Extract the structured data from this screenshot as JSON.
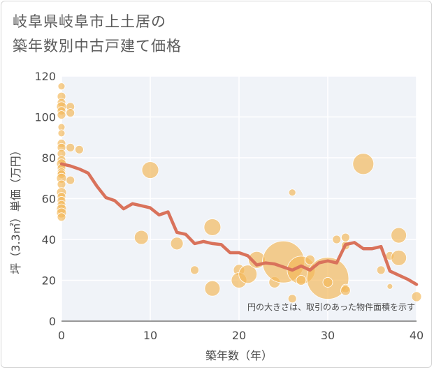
{
  "chart_data": {
    "type": "scatter",
    "title_lines": [
      "岐阜県岐阜市上土居の",
      "築年数別中古戸建て価格"
    ],
    "xlabel": "築年数（年）",
    "ylabel": "坪（3.3㎡）単価（万円）",
    "xlim": [
      0,
      40
    ],
    "ylim": [
      0,
      120
    ],
    "xticks": [
      0,
      10,
      20,
      30,
      40
    ],
    "yticks": [
      0,
      20,
      40,
      60,
      80,
      100,
      120
    ],
    "grid": true,
    "note": "円の大きさは、取引のあった物件面積を示す",
    "bubble_color": "#f3b85a",
    "line_color": "#d9725b",
    "points": [
      {
        "x": 0,
        "y": 115,
        "s": 5
      },
      {
        "x": 0,
        "y": 110,
        "s": 6
      },
      {
        "x": 0,
        "y": 107,
        "s": 6
      },
      {
        "x": 0,
        "y": 105,
        "s": 7
      },
      {
        "x": 0,
        "y": 103,
        "s": 6
      },
      {
        "x": 0,
        "y": 101,
        "s": 6
      },
      {
        "x": 0,
        "y": 95,
        "s": 5
      },
      {
        "x": 0,
        "y": 92,
        "s": 5
      },
      {
        "x": 0,
        "y": 87,
        "s": 6
      },
      {
        "x": 0,
        "y": 85,
        "s": 6
      },
      {
        "x": 0,
        "y": 82,
        "s": 6
      },
      {
        "x": 0,
        "y": 79,
        "s": 6
      },
      {
        "x": 0,
        "y": 77,
        "s": 7
      },
      {
        "x": 0,
        "y": 75,
        "s": 6
      },
      {
        "x": 0,
        "y": 73,
        "s": 6
      },
      {
        "x": 0,
        "y": 72,
        "s": 6
      },
      {
        "x": 0,
        "y": 70,
        "s": 7
      },
      {
        "x": 0,
        "y": 67,
        "s": 6
      },
      {
        "x": 0,
        "y": 63,
        "s": 7
      },
      {
        "x": 0,
        "y": 61,
        "s": 6
      },
      {
        "x": 0,
        "y": 59,
        "s": 6
      },
      {
        "x": 0,
        "y": 57,
        "s": 6
      },
      {
        "x": 0,
        "y": 55,
        "s": 7
      },
      {
        "x": 0,
        "y": 53,
        "s": 7
      },
      {
        "x": 0,
        "y": 51,
        "s": 6
      },
      {
        "x": 1,
        "y": 105,
        "s": 6
      },
      {
        "x": 1,
        "y": 102,
        "s": 6
      },
      {
        "x": 1,
        "y": 85,
        "s": 6
      },
      {
        "x": 1,
        "y": 69,
        "s": 6
      },
      {
        "x": 2,
        "y": 84,
        "s": 6
      },
      {
        "x": 10,
        "y": 74,
        "s": 12
      },
      {
        "x": 9,
        "y": 41,
        "s": 10
      },
      {
        "x": 13,
        "y": 38,
        "s": 9
      },
      {
        "x": 15,
        "y": 25,
        "s": 6
      },
      {
        "x": 17,
        "y": 46,
        "s": 12
      },
      {
        "x": 17,
        "y": 16,
        "s": 11
      },
      {
        "x": 20,
        "y": 25,
        "s": 8
      },
      {
        "x": 20,
        "y": 20,
        "s": 11
      },
      {
        "x": 21,
        "y": 23,
        "s": 13
      },
      {
        "x": 22,
        "y": 30,
        "s": 12
      },
      {
        "x": 24,
        "y": 19,
        "s": 8
      },
      {
        "x": 25,
        "y": 29,
        "s": 30
      },
      {
        "x": 26,
        "y": 63,
        "s": 5
      },
      {
        "x": 26,
        "y": 11,
        "s": 6
      },
      {
        "x": 27,
        "y": 25,
        "s": 20
      },
      {
        "x": 27,
        "y": 20,
        "s": 7
      },
      {
        "x": 28,
        "y": 30,
        "s": 7
      },
      {
        "x": 30,
        "y": 21,
        "s": 30
      },
      {
        "x": 30,
        "y": 19,
        "s": 7
      },
      {
        "x": 31,
        "y": 40,
        "s": 6
      },
      {
        "x": 32,
        "y": 41,
        "s": 6
      },
      {
        "x": 32,
        "y": 37,
        "s": 6
      },
      {
        "x": 32,
        "y": 16,
        "s": 6
      },
      {
        "x": 32,
        "y": 15,
        "s": 7
      },
      {
        "x": 34,
        "y": 77,
        "s": 15
      },
      {
        "x": 36,
        "y": 25,
        "s": 6
      },
      {
        "x": 37,
        "y": 32,
        "s": 6
      },
      {
        "x": 37,
        "y": 17,
        "s": 4
      },
      {
        "x": 38,
        "y": 42,
        "s": 11
      },
      {
        "x": 38,
        "y": 31,
        "s": 11
      },
      {
        "x": 40,
        "y": 12,
        "s": 7
      }
    ],
    "trend": [
      [
        0,
        77
      ],
      [
        1,
        76
      ],
      [
        2,
        74.5
      ],
      [
        3,
        72.5
      ],
      [
        4,
        66
      ],
      [
        5,
        60.5
      ],
      [
        6,
        59
      ],
      [
        7,
        55
      ],
      [
        8,
        57.5
      ],
      [
        9,
        56.5
      ],
      [
        10,
        55.5
      ],
      [
        11,
        52
      ],
      [
        12,
        53.5
      ],
      [
        13,
        43.5
      ],
      [
        14,
        42.5
      ],
      [
        15,
        38
      ],
      [
        16,
        39
      ],
      [
        17,
        38
      ],
      [
        18,
        37.5
      ],
      [
        19,
        33.5
      ],
      [
        20,
        33.5
      ],
      [
        21,
        32
      ],
      [
        22,
        27.5
      ],
      [
        23,
        28.5
      ],
      [
        24,
        28
      ],
      [
        25,
        26.5
      ],
      [
        26,
        25
      ],
      [
        27,
        27
      ],
      [
        28,
        25
      ],
      [
        29,
        28.5
      ],
      [
        30,
        29.5
      ],
      [
        31,
        28.5
      ],
      [
        32,
        37.5
      ],
      [
        33,
        38.5
      ],
      [
        34,
        35.5
      ],
      [
        35,
        35.5
      ],
      [
        36,
        36.5
      ],
      [
        37,
        24.5
      ],
      [
        38,
        22.5
      ],
      [
        39,
        20.5
      ],
      [
        40,
        18
      ]
    ]
  }
}
